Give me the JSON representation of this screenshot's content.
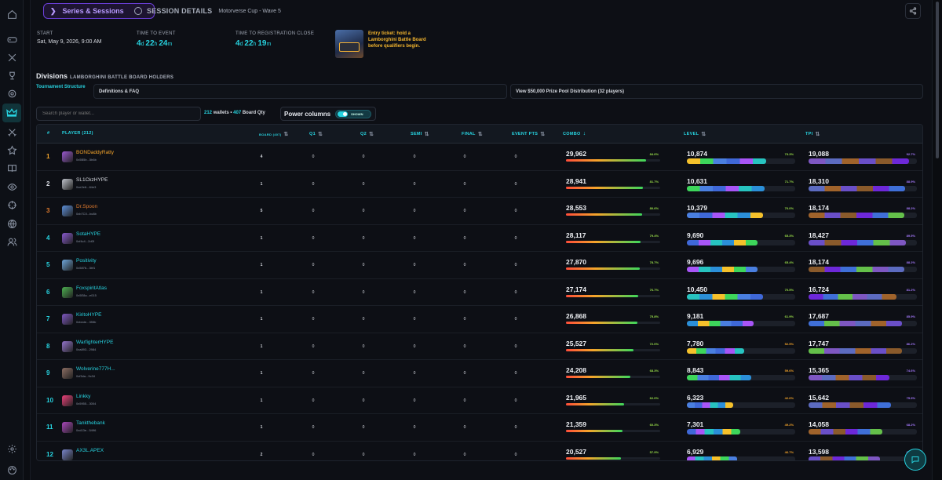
{
  "nav": {
    "tab_label": "Series & Sessions",
    "session_label": "SESSION DETAILS",
    "session_sub": "Motorverse Cup - Wave 5"
  },
  "rail_icons": [
    "home-icon",
    "gamepad-icon",
    "swords-icon",
    "trophy-icon",
    "target-icon",
    "crown-icon",
    "crossed-swords-icon",
    "star-icon",
    "book-icon",
    "eye-icon",
    "crosshair-icon",
    "globe-icon",
    "users-icon",
    "settings-icon",
    "palette-icon"
  ],
  "info": {
    "start_label": "START",
    "start_value": "Sat, May 9, 2026, 9:00 AM",
    "tte_label": "TIME TO EVENT",
    "tte": {
      "d": "4",
      "h": "22",
      "m": "24"
    },
    "ttr_label": "TIME TO REGISTRATION CLOSE",
    "ttr": {
      "d": "4",
      "h": "22",
      "m": "19"
    },
    "ticket_text": "Entry ticket: hold a Lamborghini Battle Board before qualifiers begin."
  },
  "divisions": {
    "title": "Divisions",
    "subtitle": "LAMBORGHINI BATTLE BOARD HOLDERS",
    "tab": "Tournament Structure",
    "btn_faq": "Definitions & FAQ",
    "btn_prize": "View $50,000 Prize Pool Distribution (32 players)"
  },
  "controls": {
    "search_placeholder": "Search player or wallet...",
    "wallets": "212",
    "wallets_label": "wallets •",
    "board_qty": "407",
    "board_qty_label": "Board Qty",
    "power_label": "Power columns",
    "toggle_state": "SHOWN"
  },
  "columns": {
    "rank": "#",
    "player": "PLAYER (212)",
    "board": "BOARD (407)",
    "q1": "Q1",
    "q2": "Q2",
    "semi": "SEMI",
    "final": "FINAL",
    "event_pts": "EVENT PTS",
    "combo": "COMBO",
    "level": "LEVEL",
    "tpi": "TPI"
  },
  "rows": [
    {
      "rank": "1",
      "name": "BONDaddyRatty",
      "addr": "0x5B5b...5b6b",
      "board": "4",
      "q1": "0",
      "q2": "0",
      "semi": "0",
      "final": "0",
      "pts": "0",
      "combo": "29,962",
      "combo_pct": "84.6%",
      "combo_frac": 0.846,
      "level": "10,874",
      "level_pct": "73.3%",
      "level_frac": 0.733,
      "tpi": "19,088",
      "tpi_pct": "92.7%",
      "tpi_frac": 0.927,
      "rank_color": "#f5a52b",
      "name_color": "#f5a52b",
      "avatar": "#9b59d0"
    },
    {
      "rank": "2",
      "name": "SL1CkzHYPE",
      "addr": "0xe2e6...84e3",
      "board": "1",
      "q1": "0",
      "q2": "0",
      "semi": "0",
      "final": "0",
      "pts": "0",
      "combo": "28,941",
      "combo_pct": "81.7%",
      "combo_frac": 0.817,
      "level": "10,631",
      "level_pct": "71.7%",
      "level_frac": 0.717,
      "tpi": "18,310",
      "tpi_pct": "88.9%",
      "tpi_frac": 0.889,
      "rank_color": "#d6d9e0",
      "name_color": "#d6d9e0",
      "avatar": "#c0c4cc"
    },
    {
      "rank": "3",
      "name": "Dr.Spoon",
      "addr": "0xb7C0...bc8b",
      "board": "5",
      "q1": "0",
      "q2": "0",
      "semi": "0",
      "final": "0",
      "pts": "0",
      "combo": "28,553",
      "combo_pct": "80.6%",
      "combo_frac": 0.806,
      "level": "10,379",
      "level_pct": "70.0%",
      "level_frac": 0.7,
      "tpi": "18,174",
      "tpi_pct": "88.2%",
      "tpi_frac": 0.882,
      "rank_color": "#e07b2e",
      "name_color": "#e07b2e",
      "avatar": "#5d8fd8"
    },
    {
      "rank": "4",
      "name": "SotaHYPE",
      "addr": "0xf4c4...2d0f",
      "board": "1",
      "q1": "0",
      "q2": "0",
      "semi": "0",
      "final": "0",
      "pts": "0",
      "combo": "28,117",
      "combo_pct": "79.4%",
      "combo_frac": 0.794,
      "level": "9,690",
      "level_pct": "65.3%",
      "level_frac": 0.653,
      "tpi": "18,427",
      "tpi_pct": "89.5%",
      "tpi_frac": 0.895,
      "rank_color": "#27d3e0",
      "name_color": "#27d3e0",
      "avatar": "#8a5ad0"
    },
    {
      "rank": "5",
      "name": "Positivity",
      "addr": "0x5876...3bf1",
      "board": "1",
      "q1": "0",
      "q2": "0",
      "semi": "0",
      "final": "0",
      "pts": "0",
      "combo": "27,870",
      "combo_pct": "78.7%",
      "combo_frac": 0.787,
      "level": "9,696",
      "level_pct": "65.4%",
      "level_frac": 0.654,
      "tpi": "18,174",
      "tpi_pct": "88.2%",
      "tpi_frac": 0.882,
      "rank_color": "#27d3e0",
      "name_color": "#27d3e0",
      "avatar": "#6fa8dc"
    },
    {
      "rank": "6",
      "name": "FoxspiritAtlas",
      "addr": "0x5E8a...e015",
      "board": "1",
      "q1": "0",
      "q2": "0",
      "semi": "0",
      "final": "0",
      "pts": "0",
      "combo": "27,174",
      "combo_pct": "76.7%",
      "combo_frac": 0.767,
      "level": "10,450",
      "level_pct": "70.5%",
      "level_frac": 0.705,
      "tpi": "16,724",
      "tpi_pct": "81.2%",
      "tpi_frac": 0.812,
      "rank_color": "#27d3e0",
      "name_color": "#27d3e0",
      "avatar": "#4caf50"
    },
    {
      "rank": "7",
      "name": "KiritoHYPE",
      "addr": "0xbede...355b",
      "board": "1",
      "q1": "0",
      "q2": "0",
      "semi": "0",
      "final": "0",
      "pts": "0",
      "combo": "26,868",
      "combo_pct": "75.8%",
      "combo_frac": 0.758,
      "level": "9,181",
      "level_pct": "61.9%",
      "level_frac": 0.619,
      "tpi": "17,687",
      "tpi_pct": "85.9%",
      "tpi_frac": 0.859,
      "rank_color": "#27d3e0",
      "name_color": "#27d3e0",
      "avatar": "#7e57c2"
    },
    {
      "rank": "8",
      "name": "WarfighterHYPE",
      "addr": "0xa893...2984",
      "board": "1",
      "q1": "0",
      "q2": "0",
      "semi": "0",
      "final": "0",
      "pts": "0",
      "combo": "25,527",
      "combo_pct": "72.0%",
      "combo_frac": 0.72,
      "level": "7,780",
      "level_pct": "52.5%",
      "level_frac": 0.525,
      "tpi": "17,747",
      "tpi_pct": "86.2%",
      "tpi_frac": 0.862,
      "rank_color": "#27d3e0",
      "name_color": "#27d3e0",
      "avatar": "#9575cd"
    },
    {
      "rank": "9",
      "name": "Wolverine777H...",
      "addr": "0xf3da...9c34",
      "board": "1",
      "q1": "0",
      "q2": "0",
      "semi": "0",
      "final": "0",
      "pts": "0",
      "combo": "24,208",
      "combo_pct": "68.3%",
      "combo_frac": 0.683,
      "level": "8,843",
      "level_pct": "59.6%",
      "level_frac": 0.596,
      "tpi": "15,365",
      "tpi_pct": "74.6%",
      "tpi_frac": 0.746,
      "rank_color": "#27d3e0",
      "name_color": "#27d3e0",
      "avatar": "#8d6e63"
    },
    {
      "rank": "10",
      "name": "Linkky",
      "addr": "0x5955...3004",
      "board": "1",
      "q1": "0",
      "q2": "0",
      "semi": "0",
      "final": "0",
      "pts": "0",
      "combo": "21,965",
      "combo_pct": "62.0%",
      "combo_frac": 0.62,
      "level": "6,323",
      "level_pct": "42.6%",
      "level_frac": 0.426,
      "tpi": "15,642",
      "tpi_pct": "75.9%",
      "tpi_frac": 0.759,
      "rank_color": "#27d3e0",
      "name_color": "#27d3e0",
      "avatar": "#ec407a"
    },
    {
      "rank": "11",
      "name": "Tankthebank",
      "addr": "0xd13e...5496",
      "board": "1",
      "q1": "0",
      "q2": "0",
      "semi": "0",
      "final": "0",
      "pts": "0",
      "combo": "21,359",
      "combo_pct": "60.3%",
      "combo_frac": 0.603,
      "level": "7,301",
      "level_pct": "49.2%",
      "level_frac": 0.492,
      "tpi": "14,058",
      "tpi_pct": "68.2%",
      "tpi_frac": 0.682,
      "rank_color": "#27d3e0",
      "name_color": "#27d3e0",
      "avatar": "#ab47bc"
    },
    {
      "rank": "12",
      "name": "AX3L.APEX",
      "addr": "",
      "board": "2",
      "q1": "0",
      "q2": "0",
      "semi": "0",
      "final": "0",
      "pts": "0",
      "combo": "20,527",
      "combo_pct": "57.9%",
      "combo_frac": 0.579,
      "level": "6,929",
      "level_pct": "46.7%",
      "level_frac": 0.467,
      "tpi": "13,598",
      "tpi_pct": "66.0%",
      "tpi_frac": 0.66,
      "rank_color": "#27d3e0",
      "name_color": "#27d3e0",
      "avatar": "#7986cb"
    }
  ],
  "colors": {
    "accent": "#27d3e0",
    "purple": "#6b3fd8",
    "gold": "#f3b52e",
    "pct_green": "#9be04a",
    "pct_orange": "#f5a52b",
    "pct_purple": "#a77bff"
  }
}
